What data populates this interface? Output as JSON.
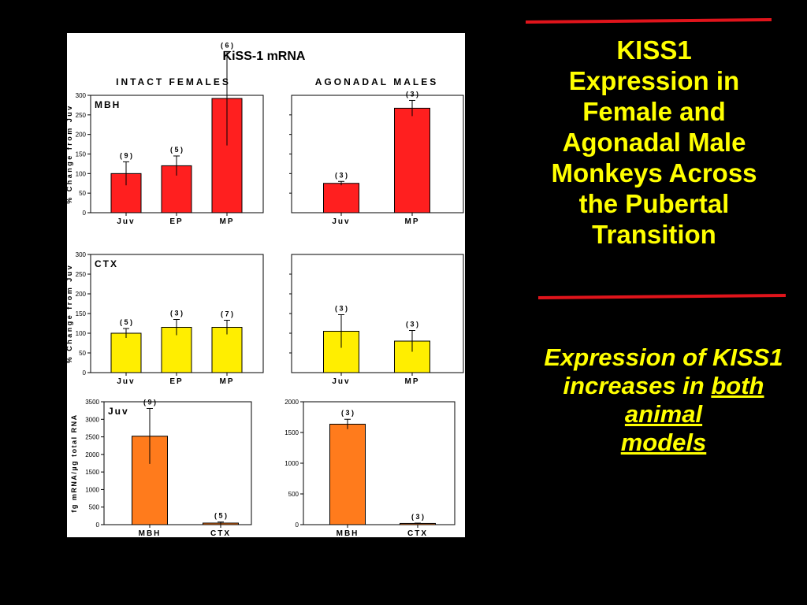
{
  "slide": {
    "title_lines": [
      "KISS1",
      "Expression in",
      "Female and",
      "Agonadal Male",
      "Monkeys Across",
      "the Pubertal",
      "Transition"
    ],
    "note": {
      "prefix": "Expression of KISS1 increases in ",
      "emphasis_line1": "both animal",
      "emphasis_line2": "models"
    },
    "rule_color": "#e0141b",
    "text_color": "#ffff00"
  },
  "figure": {
    "title": "KiSS-1 mRNA",
    "column_headers": [
      "INTACT FEMALES",
      "AGONADAL MALES"
    ],
    "y_label_percent": "% Change from Juv",
    "y_label_fg": "fg mRNA/µg total RNA"
  },
  "chart_data": [
    {
      "type": "bar",
      "panel_label": "MBH",
      "group": "INTACT FEMALES",
      "color": "#ff1f1f",
      "categories": [
        "Juv",
        "EP",
        "MP"
      ],
      "values": [
        100,
        120,
        292
      ],
      "errors": [
        30,
        25,
        120
      ],
      "n_labels": [
        "( 9 )",
        "( 5 )",
        "( 6 )"
      ],
      "ylim": [
        0,
        300
      ],
      "yticks": [
        0,
        50,
        100,
        150,
        200,
        250,
        300
      ],
      "ylabel": "% Change from Juv"
    },
    {
      "type": "bar",
      "panel_label": "",
      "group": "AGONADAL MALES",
      "color": "#ff1f1f",
      "categories": [
        "Juv",
        "MP"
      ],
      "values": [
        75,
        267
      ],
      "errors": [
        5,
        20
      ],
      "n_labels": [
        "( 3 )",
        "( 3 )"
      ],
      "ylim": [
        0,
        300
      ],
      "yticks": [],
      "ylabel": ""
    },
    {
      "type": "bar",
      "panel_label": "CTX",
      "group": "INTACT FEMALES",
      "color": "#ffee00",
      "categories": [
        "Juv",
        "EP",
        "MP"
      ],
      "values": [
        100,
        115,
        115
      ],
      "errors": [
        12,
        20,
        18
      ],
      "n_labels": [
        "( 5 )",
        "( 3 )",
        "( 7 )"
      ],
      "ylim": [
        0,
        300
      ],
      "yticks": [
        0,
        50,
        100,
        150,
        200,
        250,
        300
      ],
      "ylabel": "% Change from Juv"
    },
    {
      "type": "bar",
      "panel_label": "",
      "group": "AGONADAL MALES",
      "color": "#ffee00",
      "categories": [
        "Juv",
        "MP"
      ],
      "values": [
        105,
        80
      ],
      "errors": [
        42,
        27
      ],
      "n_labels": [
        "( 3 )",
        "( 3 )"
      ],
      "ylim": [
        0,
        300
      ],
      "yticks": [],
      "ylabel": ""
    },
    {
      "type": "bar",
      "panel_label": "Juv",
      "group": "INTACT FEMALES",
      "color": "#ff7b1c",
      "categories": [
        "MBH",
        "CTX"
      ],
      "values": [
        2520,
        45
      ],
      "errors": [
        790,
        30
      ],
      "n_labels": [
        "( 9 )",
        "( 5 )"
      ],
      "ylim": [
        0,
        3500
      ],
      "yticks": [
        0,
        500,
        1000,
        1500,
        2000,
        2500,
        3000,
        3500
      ],
      "ylabel": "fg mRNA/µg total RNA"
    },
    {
      "type": "bar",
      "panel_label": "",
      "group": "AGONADAL MALES",
      "color": "#ff7b1c",
      "categories": [
        "MBH",
        "CTX"
      ],
      "values": [
        1635,
        20
      ],
      "errors": [
        80,
        5
      ],
      "n_labels": [
        "( 3 )",
        "( 3 )"
      ],
      "ylim": [
        0,
        2000
      ],
      "yticks": [
        0,
        500,
        1000,
        1500,
        2000
      ],
      "ylabel": ""
    }
  ]
}
